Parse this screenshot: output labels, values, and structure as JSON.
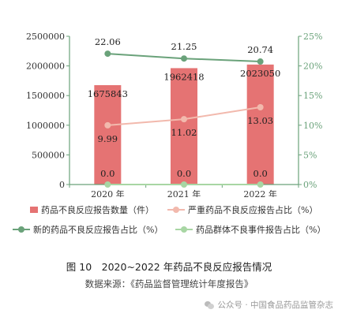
{
  "chart_data": {
    "type": "bar",
    "x": [
      "2020 年",
      "2021 年",
      "2022 年"
    ],
    "bar_series": {
      "name": "药品不良反应报告数量（件）",
      "values": [
        1675843,
        1962418,
        2023050
      ],
      "labels": [
        "1675843",
        "1962418",
        "2023050"
      ],
      "color": "#e57373"
    },
    "line_series": [
      {
        "name": "严重药品不良反应报告占比（%）",
        "values": [
          9.99,
          11.02,
          13.03
        ],
        "labels": [
          "9.99",
          "11.02",
          "13.03"
        ],
        "color": "#f2b9ad"
      },
      {
        "name": "新的药品不良反应报告占比（%）",
        "values": [
          22.06,
          21.25,
          20.74
        ],
        "labels": [
          "22.06",
          "21.25",
          "20.74"
        ],
        "color": "#6aa27a"
      },
      {
        "name": "药品群体不良事件报告占比（%）",
        "values": [
          0.0,
          0.0,
          0.0
        ],
        "labels": [
          "0.0",
          "0.0",
          "0.0"
        ],
        "color": "#a8d6a4"
      }
    ],
    "y_left": {
      "range": [
        0,
        2500000
      ],
      "ticks": [
        "0",
        "500000",
        "1000000",
        "1500000",
        "2000000",
        "2500000"
      ]
    },
    "y_right": {
      "range": [
        0,
        25
      ],
      "ticks": [
        "0%",
        "5%",
        "10%",
        "15%",
        "20%",
        "25%"
      ],
      "color": "#6aa27a"
    },
    "axis_color": "#6aa27a",
    "grid": false,
    "legend_position": "bottom"
  },
  "caption": "图 10　2020~2022 年药品不良反应报告情况",
  "source": "数据来源：《药品监督管理统计年度报告》",
  "footer": "公众号 · 中国食品药品监管杂志"
}
